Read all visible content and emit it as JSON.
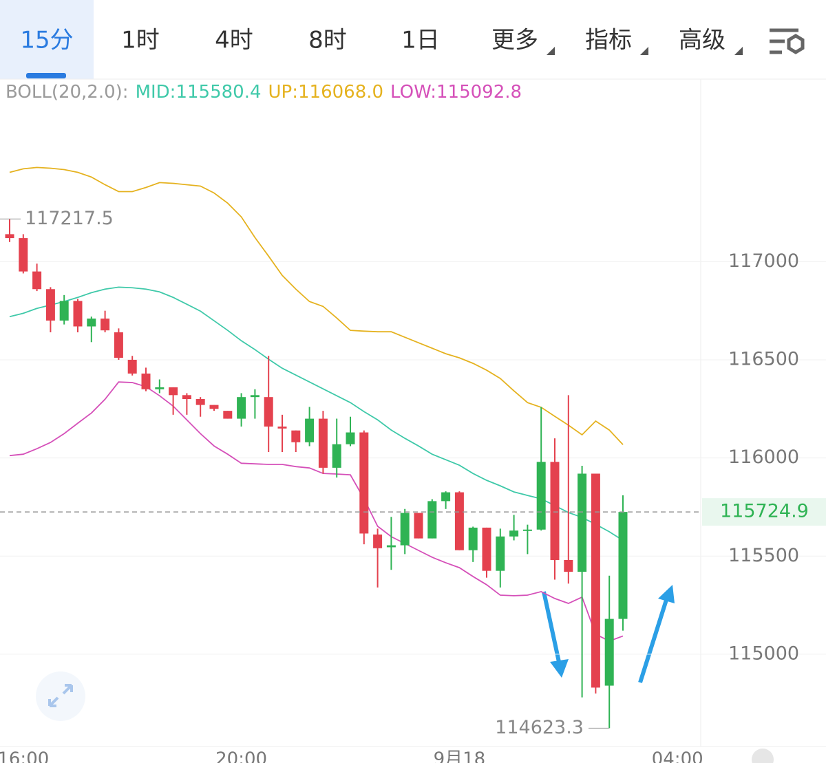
{
  "tabs": [
    "15分",
    "1时",
    "4时",
    "8时",
    "1日",
    "更多",
    "指标",
    "高级"
  ],
  "chart_data": {
    "type": "candlestick",
    "indicator": "BOLL(20,2.0):",
    "categories": [
      null,
      "16:00",
      null,
      null,
      null,
      null,
      null,
      null,
      null,
      null,
      null,
      null,
      null,
      null,
      null,
      null,
      null,
      "20:00",
      null,
      null,
      null,
      null,
      null,
      null,
      null,
      null,
      null,
      null,
      null,
      null,
      null,
      null,
      null,
      "9月18",
      null,
      null,
      null,
      null,
      null,
      null,
      null,
      null,
      null,
      null,
      null,
      null,
      null,
      null,
      null,
      "04:00"
    ],
    "open": [
      117140,
      117120,
      116950,
      116860,
      116700,
      116800,
      116670,
      116710,
      116640,
      116500,
      116430,
      116350,
      116360,
      116320,
      116300,
      116270,
      116240,
      116200,
      116310,
      116310,
      116160,
      116140,
      116080,
      116200,
      115950,
      116070,
      116130,
      115610,
      115545,
      115555,
      115720,
      115590,
      115780,
      115825,
      115530,
      115645,
      115425,
      115600,
      115630,
      115635,
      115980,
      115480,
      115420,
      115920,
      114840,
      115180,
      null,
      null,
      null,
      null
    ],
    "high": [
      117217.5,
      117140,
      116990,
      116870,
      116830,
      116810,
      116720,
      116750,
      116660,
      116520,
      116460,
      116400,
      116360,
      116330,
      116310,
      116270,
      116240,
      116330,
      116350,
      116520,
      116220,
      116140,
      116260,
      116240,
      116200,
      116210,
      116140,
      115640,
      115700,
      115740,
      115720,
      115790,
      115830,
      115830,
      115650,
      115645,
      115640,
      115710,
      115660,
      116260,
      116100,
      116320,
      115960,
      115920,
      115400,
      115810,
      null,
      null,
      null,
      null
    ],
    "low": [
      117100,
      116940,
      116850,
      116640,
      116680,
      116640,
      116590,
      116640,
      116500,
      116420,
      116340,
      116330,
      116220,
      116220,
      116210,
      116240,
      116200,
      116160,
      116200,
      116030,
      116030,
      116030,
      116060,
      115920,
      115900,
      116060,
      115560,
      115340,
      115430,
      115510,
      115590,
      115590,
      115740,
      115530,
      115470,
      115390,
      115340,
      115580,
      115510,
      115630,
      115380,
      115360,
      114780,
      114800,
      114623.3,
      115120,
      null,
      null,
      null,
      null
    ],
    "close": [
      117120,
      116950,
      116860,
      116700,
      116800,
      116670,
      116710,
      116650,
      116510,
      116430,
      116350,
      116360,
      116320,
      116300,
      116270,
      116250,
      116200,
      116310,
      116320,
      116160,
      116150,
      116080,
      116200,
      115950,
      116070,
      116130,
      115615,
      115540,
      115555,
      115720,
      115590,
      115780,
      115825,
      115530,
      115645,
      115425,
      115600,
      115630,
      115635,
      115980,
      115480,
      115420,
      115920,
      114830,
      115180,
      115724.9,
      null,
      null,
      null,
      null
    ],
    "up_color": "#2fb354",
    "down_color": "#e4414e",
    "series": [
      {
        "legend_label": "MID:115580.4",
        "color": "#3fc9a9",
        "values": [
          116720,
          116737,
          116762,
          116779,
          116797,
          116818,
          116842,
          116860,
          116870,
          116867,
          116860,
          116846,
          116818,
          116783,
          116748,
          116699,
          116650,
          116597,
          116552,
          116503,
          116457,
          116422,
          116387,
          116352,
          116317,
          116282,
          116236,
          116194,
          116142,
          116100,
          116061,
          116019,
          115991,
          115963,
          115921,
          115886,
          115858,
          115827,
          115809,
          115792,
          115757,
          115722,
          115697,
          115662,
          115624,
          115580.4,
          null,
          null,
          null,
          null
        ]
      },
      {
        "legend_label": "UP:116068.0",
        "color": "#e5b21f",
        "values": [
          117455,
          117473,
          117480,
          117476,
          117469,
          117455,
          117431,
          117392,
          117357,
          117357,
          117378,
          117403,
          117399,
          117392,
          117385,
          117350,
          117298,
          117228,
          117123,
          117028,
          116930,
          116860,
          116797,
          116772,
          116713,
          116650,
          116646,
          116643,
          116643,
          116615,
          116587,
          116559,
          116531,
          116510,
          116482,
          116447,
          116405,
          116342,
          116282,
          116258,
          116212,
          116167,
          116118,
          116188,
          116142,
          116068.0,
          null,
          null,
          null,
          null
        ]
      },
      {
        "legend_label": "LOW:115092.8",
        "color": "#d550b9",
        "values": [
          116012,
          116019,
          116047,
          116079,
          116124,
          116177,
          116229,
          116299,
          116387,
          116384,
          116363,
          116317,
          116264,
          116194,
          116124,
          116061,
          116019,
          115973,
          115970,
          115967,
          115967,
          115956,
          115949,
          115921,
          115918,
          115914,
          115792,
          115652,
          115599,
          115564,
          115529,
          115494,
          115466,
          115441,
          115396,
          115354,
          115301,
          115298,
          115301,
          115319,
          115284,
          115259,
          115291,
          115102,
          115067,
          115092.8,
          null,
          null,
          null,
          null
        ]
      }
    ],
    "ylim": [
      114530,
      117930
    ],
    "yticks": [
      115000,
      115500,
      116000,
      116500,
      117000
    ],
    "grid": true
  }
}
